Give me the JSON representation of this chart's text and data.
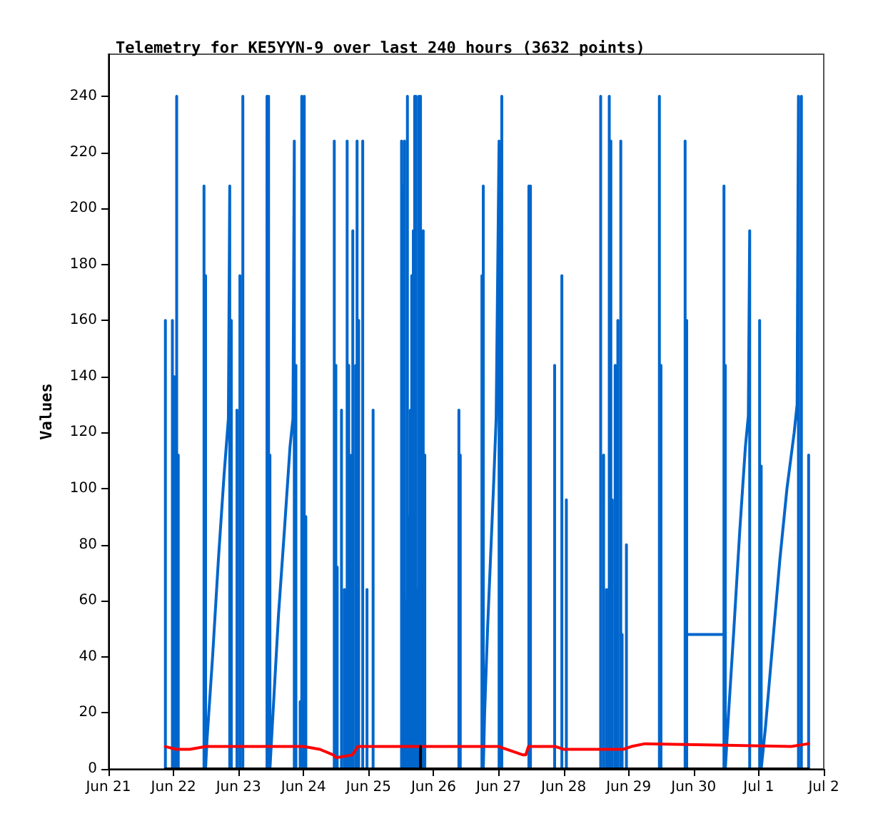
{
  "chart_data": {
    "type": "line",
    "title": "Telemetry for KE5YYN-9 over last 240 hours (3632 points)",
    "ylabel": "Values",
    "marker": "none",
    "xlim": [
      "--06-21",
      "--07-02"
    ],
    "xticks": [
      {
        "value": "--06-21",
        "label": "Jun 21"
      },
      {
        "value": "--06-22",
        "label": "Jun 22"
      },
      {
        "value": "--06-23",
        "label": "Jun 23"
      },
      {
        "value": "--06-24",
        "label": "Jun 24"
      },
      {
        "value": "--06-25",
        "label": "Jun 25"
      },
      {
        "value": "--06-26",
        "label": "Jun 26"
      },
      {
        "value": "--06-27",
        "label": "Jun 27"
      },
      {
        "value": "--06-28",
        "label": "Jun 28"
      },
      {
        "value": "--06-29",
        "label": "Jun 29"
      },
      {
        "value": "--06-30",
        "label": "Jun 30"
      },
      {
        "value": "--07-01",
        "label": "Jul 1"
      },
      {
        "value": "--07-02",
        "label": "Jul 2"
      }
    ],
    "ylim": [
      0,
      255
    ],
    "yticks": [
      0,
      20,
      40,
      60,
      80,
      100,
      120,
      140,
      160,
      180,
      200,
      220,
      240
    ],
    "series": [
      {
        "color": "#0066cc",
        "x": [
          "--06-21T21:00",
          "--06-21T21:00",
          "--06-21T21:00",
          "--06-21T23:35",
          "--06-21T23:35",
          "--06-21T23:35",
          "--06-22T00:10",
          "--06-22T00:10",
          "--06-22T00:10",
          "--06-22T01:10",
          "--06-22T01:10",
          "--06-22T01:10",
          "--06-22T01:45",
          "--06-22T01:45",
          "--06-22T01:45",
          "--06-22T11:15",
          "--06-22T11:15",
          "--06-22T11:15",
          "--06-22T11:50",
          "--06-22T11:50",
          "--06-22T11:50",
          "--06-22T12:20",
          "--06-22T14:25",
          "--06-22T16:35",
          "--06-22T18:40",
          "--06-22T20:15",
          "--06-22T20:45",
          "--06-22T20:45",
          "--06-22T21:20",
          "--06-22T21:20",
          "--06-22T21:20",
          "--06-22T23:25",
          "--06-22T23:25",
          "--06-22T23:25",
          "--06-23T00:30",
          "--06-23T00:30",
          "--06-23T00:30",
          "--06-23T01:35",
          "--06-23T01:35",
          "--06-23T01:35",
          "--06-23T10:30",
          "--06-23T10:30",
          "--06-23T10:30",
          "--06-23T11:05",
          "--06-23T11:05",
          "--06-23T11:05",
          "--06-23T11:35",
          "--06-23T11:35",
          "--06-23T11:35",
          "--06-23T12:40",
          "--06-23T14:45",
          "--06-23T16:55",
          "--06-23T19:00",
          "--06-23T20:05",
          "--06-23T20:35",
          "--06-23T20:35",
          "--06-23T21:10",
          "--06-23T21:10",
          "--06-23T21:10",
          "--06-23T22:45",
          "--06-23T22:45",
          "--06-23T22:45",
          "--06-23T23:20",
          "--06-23T23:20",
          "--06-23T23:20",
          "--06-23T23:50",
          "--06-23T23:50",
          "--06-23T23:50",
          "--06-24T00:15",
          "--06-24T00:15",
          "--06-24T00:15",
          "--06-24T00:50",
          "--06-24T00:50",
          "--06-24T00:50",
          "--06-24T11:20",
          "--06-24T11:20",
          "--06-24T11:20",
          "--06-24T11:55",
          "--06-24T11:55",
          "--06-24T11:55",
          "--06-24T12:25",
          "--06-24T12:25",
          "--06-24T12:25",
          "--06-24T14:00",
          "--06-24T14:00",
          "--06-24T14:00",
          "--06-24T15:05",
          "--06-24T15:05",
          "--06-24T15:05",
          "--06-24T16:05",
          "--06-24T16:05",
          "--06-24T16:05",
          "--06-24T16:40",
          "--06-24T16:40",
          "--06-24T16:40",
          "--06-24T17:10",
          "--06-24T17:10",
          "--06-24T17:10",
          "--06-24T18:10",
          "--06-24T18:10",
          "--06-24T18:10",
          "--06-24T19:15",
          "--06-24T19:15",
          "--06-24T19:15",
          "--06-24T19:45",
          "--06-24T19:45",
          "--06-24T19:45",
          "--06-24T20:20",
          "--06-24T20:20",
          "--06-24T20:20",
          "--06-24T21:50",
          "--06-24T21:50",
          "--06-24T21:50",
          "--06-24T23:25",
          "--06-24T23:25",
          "--06-24T23:25",
          "--06-25T01:40",
          "--06-25T01:40",
          "--06-25T01:40",
          "--06-25T12:10",
          "--06-25T12:10",
          "--06-25T12:10",
          "--06-25T12:45",
          "--06-25T12:45",
          "--06-25T12:45",
          "--06-25T13:15",
          "--06-25T13:15",
          "--06-25T13:15",
          "--06-25T13:50",
          "--06-25T13:50",
          "--06-25T13:50",
          "--06-25T14:20",
          "--06-25T14:20",
          "--06-25T14:20",
          "--06-25T14:50",
          "--06-25T14:50",
          "--06-25T14:50",
          "--06-25T15:25",
          "--06-25T15:25",
          "--06-25T15:25",
          "--06-25T15:55",
          "--06-25T15:55",
          "--06-25T15:55",
          "--06-25T16:30",
          "--06-25T16:30",
          "--06-25T16:30",
          "--06-25T17:00",
          "--06-25T17:00",
          "--06-25T17:00",
          "--06-25T17:30",
          "--06-25T17:30",
          "--06-25T17:30",
          "--06-25T18:05",
          "--06-25T18:05",
          "--06-25T18:05",
          "--06-25T18:35",
          "--06-25T18:35",
          "--06-25T18:35",
          "--06-25T19:10",
          "--06-25T19:10",
          "--06-25T19:10",
          "--06-25T20:10",
          "--06-25T20:10",
          "--06-25T20:10",
          "--06-25T20:45",
          "--06-25T20:45",
          "--06-25T20:45",
          "--06-26T09:20",
          "--06-26T09:20",
          "--06-26T09:20",
          "--06-26T09:50",
          "--06-26T09:50",
          "--06-26T09:50",
          "--06-26T17:50",
          "--06-26T17:50",
          "--06-26T17:50",
          "--06-26T18:20",
          "--06-26T18:20",
          "--06-26T18:20",
          "--06-26T18:50",
          "--06-26T19:55",
          "--06-26T21:00",
          "--06-26T22:05",
          "--06-26T23:05",
          "--06-27T00:10",
          "--06-27T00:10",
          "--06-27T00:40",
          "--06-27T00:40",
          "--06-27T00:40",
          "--06-27T01:10",
          "--06-27T01:10",
          "--06-27T01:10",
          "--06-27T11:10",
          "--06-27T11:10",
          "--06-27T11:10",
          "--06-27T11:45",
          "--06-27T11:45",
          "--06-27T11:45",
          "--06-27T20:40",
          "--06-27T20:40",
          "--06-27T20:40",
          "--06-27T23:20",
          "--06-27T23:20",
          "--06-27T23:20",
          "--06-28T01:00",
          "--06-28T01:00",
          "--06-28T01:00",
          "--06-28T13:40",
          "--06-28T13:40",
          "--06-28T13:40",
          "--06-28T14:45",
          "--06-28T14:45",
          "--06-28T14:45",
          "--06-28T15:50",
          "--06-28T15:50",
          "--06-28T15:50",
          "--06-28T16:50",
          "--06-28T16:50",
          "--06-28T16:50",
          "--06-28T17:25",
          "--06-28T17:25",
          "--06-28T17:25",
          "--06-28T17:55",
          "--06-28T17:55",
          "--06-28T17:55",
          "--06-28T19:00",
          "--06-28T19:00",
          "--06-28T19:00",
          "--06-28T20:00",
          "--06-28T20:00",
          "--06-28T20:00",
          "--06-28T21:05",
          "--06-28T21:05",
          "--06-28T21:05",
          "--06-28T21:35",
          "--06-28T21:35",
          "--06-28T21:35",
          "--06-28T23:10",
          "--06-28T23:10",
          "--06-28T23:10",
          "--06-29T11:20",
          "--06-29T11:20",
          "--06-29T11:20",
          "--06-29T11:55",
          "--06-29T11:55",
          "--06-29T11:55",
          "--06-29T20:50",
          "--06-29T20:50",
          "--06-29T20:50",
          "--06-29T21:25",
          "--06-29T21:25",
          "--06-29T21:25",
          "--06-30T11:10",
          "--06-30T11:10",
          "--06-30T11:10",
          "--06-30T11:40",
          "--06-30T11:40",
          "--06-30T11:40",
          "--06-30T12:45",
          "--06-30T14:50",
          "--06-30T17:00",
          "--06-30T19:05",
          "--06-30T20:10",
          "--06-30T20:40",
          "--06-30T20:40",
          "--07-01T00:20",
          "--07-01T00:20",
          "--07-01T00:20",
          "--07-01T00:55",
          "--07-01T00:55",
          "--07-01T00:55",
          "--07-01T02:30",
          "--07-01T05:10",
          "--07-01T07:50",
          "--07-01T10:25",
          "--07-01T13:05",
          "--07-01T14:10",
          "--07-01T14:40",
          "--07-01T14:40",
          "--07-01T15:45",
          "--07-01T15:45",
          "--07-01T15:45",
          "--07-01T18:25",
          "--07-01T18:25"
        ],
        "values": [
          0,
          160,
          0,
          0,
          160,
          0,
          0,
          140,
          0,
          0,
          240,
          0,
          0,
          112,
          0,
          0,
          208,
          0,
          0,
          176,
          0,
          10,
          40,
          75,
          105,
          125,
          208,
          0,
          0,
          160,
          0,
          0,
          128,
          0,
          0,
          176,
          0,
          0,
          240,
          0,
          0,
          240,
          0,
          0,
          240,
          0,
          0,
          112,
          0,
          19,
          55,
          85,
          115,
          125,
          224,
          0,
          0,
          144,
          0,
          0,
          24,
          0,
          0,
          240,
          0,
          0,
          198,
          0,
          0,
          240,
          0,
          0,
          90,
          0,
          0,
          224,
          0,
          0,
          144,
          0,
          0,
          72,
          0,
          0,
          128,
          0,
          0,
          64,
          0,
          0,
          224,
          0,
          0,
          144,
          0,
          0,
          112,
          0,
          0,
          192,
          0,
          0,
          144,
          0,
          0,
          224,
          0,
          0,
          160,
          0,
          0,
          224,
          0,
          0,
          64,
          0,
          0,
          128,
          0,
          0,
          224,
          0,
          0,
          208,
          0,
          0,
          224,
          0,
          0,
          60,
          0,
          0,
          240,
          0,
          0,
          90,
          0,
          0,
          128,
          0,
          0,
          176,
          0,
          0,
          192,
          0,
          0,
          240,
          0,
          0,
          240,
          0,
          0,
          64,
          0,
          0,
          240,
          0,
          0,
          240,
          0,
          0,
          192,
          0,
          0,
          112,
          0,
          0,
          128,
          0,
          0,
          112,
          0,
          0,
          176,
          0,
          0,
          208,
          0,
          20,
          50,
          75,
          100,
          125,
          224,
          0,
          0,
          144,
          0,
          0,
          240,
          0,
          0,
          208,
          0,
          0,
          208,
          0,
          0,
          144,
          0,
          0,
          176,
          0,
          0,
          96,
          0,
          0,
          240,
          0,
          0,
          112,
          0,
          0,
          64,
          0,
          0,
          240,
          0,
          0,
          224,
          0,
          0,
          96,
          0,
          0,
          144,
          0,
          0,
          160,
          0,
          0,
          224,
          0,
          0,
          48,
          0,
          0,
          80,
          0,
          0,
          240,
          0,
          0,
          144,
          0,
          0,
          224,
          0,
          0,
          160,
          48,
          48,
          208,
          0,
          0,
          144,
          0,
          18,
          50,
          85,
          115,
          126,
          192,
          0,
          0,
          160,
          0,
          0,
          108,
          0,
          15,
          45,
          75,
          100,
          120,
          130,
          240,
          0,
          0,
          240,
          0,
          0,
          112
        ]
      },
      {
        "color": "#ff0000",
        "x": [
          "--06-21T21:00",
          "--06-22T01:00",
          "--06-22T06:00",
          "--06-22T12:00",
          "--06-22T22:00",
          "--06-23T00:00",
          "--06-24T00:00",
          "--06-24T06:00",
          "--06-24T11:00",
          "--06-24T12:00",
          "--06-24T18:00",
          "--06-24T20:00",
          "--06-25T00:00",
          "--06-27T00:00",
          "--06-27T09:00",
          "--06-27T10:00",
          "--06-27T11:00",
          "--06-27T21:00",
          "--06-28T00:00",
          "--06-28T04:00",
          "--06-28T10:00",
          "--06-28T17:00",
          "--06-28T22:00",
          "--06-29T01:00",
          "--06-29T06:00",
          "--07-01T12:00",
          "--07-01T18:25"
        ],
        "values": [
          8,
          7,
          7,
          8,
          8,
          8,
          8,
          7,
          5,
          4,
          5,
          8,
          8,
          8,
          5,
          5,
          8,
          8,
          7,
          7,
          7,
          7,
          7,
          8,
          9,
          8,
          9
        ]
      },
      {
        "color": "#000000",
        "x": [
          "--06-21T21:00",
          "--06-25T19:10",
          "--06-25T19:10",
          "--06-25T19:10",
          "--07-01T18:25"
        ],
        "values": [
          0,
          0,
          8,
          0,
          0
        ]
      }
    ]
  }
}
